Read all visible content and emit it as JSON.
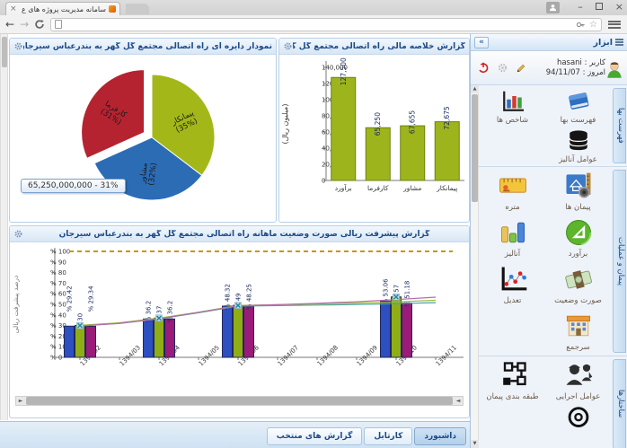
{
  "browser": {
    "tab_title": "سامانه مدیریت پروژه های ع",
    "url_value": "",
    "url_placeholder": ""
  },
  "sidebar": {
    "title": "ابزار",
    "collapse_label": "»",
    "user": {
      "label": "کاربر : hasani",
      "date": "امروز : 94/11/07"
    },
    "sections": [
      {
        "tab": "فهرست بها",
        "items": [
          {
            "label": "فهرست بها",
            "icon": "book"
          },
          {
            "label": "شاخص ها",
            "icon": "indicators"
          },
          {
            "label": "عوامل آنالیز",
            "icon": "database"
          }
        ]
      },
      {
        "tab": "پیمان و عملیات",
        "items": [
          {
            "label": "پیمان ها",
            "icon": "contracts"
          },
          {
            "label": "متره",
            "icon": "ruler"
          },
          {
            "label": "برآورد",
            "icon": "estimate"
          },
          {
            "label": "آنالیز",
            "icon": "analysis"
          },
          {
            "label": "صورت وضعیت",
            "icon": "statement"
          },
          {
            "label": "تعدیل",
            "icon": "adjustment"
          },
          {
            "label": "سرجمع",
            "icon": "building"
          }
        ]
      },
      {
        "tab": "ساختارها",
        "items": [
          {
            "label": "عوامل اجرایی",
            "icon": "workers"
          },
          {
            "label": "طبقه بندی پیمان",
            "icon": "classification"
          },
          {
            "label": "",
            "icon": "target"
          }
        ]
      }
    ]
  },
  "panels": {
    "pie": {
      "title": "نمودار دایره ای راه اتصالی مجتمع گل گهر به بندرعباس سیرجان",
      "tooltip": "65,250,000,000 - 31%"
    },
    "bar": {
      "title": "گزارش خلاصه مالی راه اتصالی مجتمع گل گهر به بند..."
    },
    "progress": {
      "title": "گزارش پیشرفت ریالی صورت وضعیت ماهانه راه اتصالی مجتمع گل گهر به بندرعباس سیرجان"
    }
  },
  "footer": {
    "tabs": [
      "داشبورد",
      "کارتابل",
      "گزارش های منتخب"
    ],
    "active": "داشبورد"
  },
  "chart_data": [
    {
      "type": "pie",
      "title": "نمودار دایره ای راه اتصالی مجتمع گل گهر به بندرعباس سیرجان",
      "slices": [
        {
          "name": "پیمانکار",
          "pct": 35,
          "value": 72675,
          "color": "#a3b818",
          "exploded": false
        },
        {
          "name": "مشاور",
          "pct": 32,
          "value": 67655,
          "color": "#2b6cb5",
          "exploded": false
        },
        {
          "name": "کارفرما",
          "pct": 31,
          "value": 65250,
          "color": "#b62330",
          "exploded": true
        }
      ],
      "tooltip": "65,250,000,000 - 31%",
      "legend": "none"
    },
    {
      "type": "bar",
      "title": "گزارش خلاصه مالی راه اتصالی مجتمع گل گهر به بند...",
      "categories": [
        "برآورد",
        "کارفرما",
        "مشاور",
        "پیمانکار"
      ],
      "values": [
        127500,
        65250,
        67655,
        72675
      ],
      "xlabel": "",
      "ylabel": "(میلیون ریال)",
      "ylim": [
        0,
        140000
      ],
      "ystep": 20000,
      "bar_color": "#9db41d",
      "bar_border": "#6f810e"
    },
    {
      "type": "bar+line",
      "title": "گزارش پیشرفت ریالی صورت وضعیت ماهانه راه اتصالی مجتمع گل گهر به بندرعباس سیرجان",
      "categories": [
        "1394/02",
        "1394/03",
        "1394/04",
        "1394/05",
        "1394/06",
        "1394/07",
        "1394/08",
        "1394/09",
        "1394/10",
        "1394/11"
      ],
      "ylabel": "درصد پیشرفت ریالی",
      "ylim": [
        0,
        100
      ],
      "ystep": 10,
      "bar_series": [
        {
          "name": "blue",
          "color": "#2d4fc0",
          "values": [
            29.42,
            null,
            36.2,
            null,
            48.32,
            null,
            null,
            null,
            53.06,
            null
          ]
        },
        {
          "name": "green",
          "color": "#8fae16",
          "values": [
            30,
            null,
            37,
            null,
            49,
            null,
            null,
            null,
            57,
            null
          ]
        },
        {
          "name": "purple",
          "color": "#9a1c78",
          "values": [
            29.34,
            null,
            36.2,
            null,
            48.25,
            null,
            null,
            null,
            51.18,
            null
          ]
        }
      ],
      "line_series": [
        {
          "name": "teal-line",
          "color": "#4aa3a3",
          "values": [
            29.8,
            32.0,
            36.3,
            42.0,
            48.4,
            48.8,
            49.3,
            49.9,
            50.7,
            51.6
          ]
        },
        {
          "name": "olive-line",
          "color": "#a0b83a",
          "values": [
            30.2,
            32.6,
            37.0,
            42.6,
            49.0,
            49.7,
            50.4,
            51.3,
            52.4,
            53.8
          ]
        },
        {
          "name": "purple-line",
          "color": "#b56ab0",
          "values": [
            29.5,
            32.1,
            36.4,
            42.4,
            48.6,
            49.7,
            51.0,
            52.5,
            54.5,
            56.8
          ]
        }
      ],
      "reference_line": {
        "value": 100,
        "style": "dashed",
        "color": "#c8960c"
      },
      "markers": {
        "color": "#1b8a9a",
        "points": [
          [
            0,
            30
          ],
          [
            2,
            37
          ],
          [
            4,
            49
          ],
          [
            8,
            57
          ]
        ]
      },
      "grid": "off",
      "legend": "none"
    }
  ]
}
